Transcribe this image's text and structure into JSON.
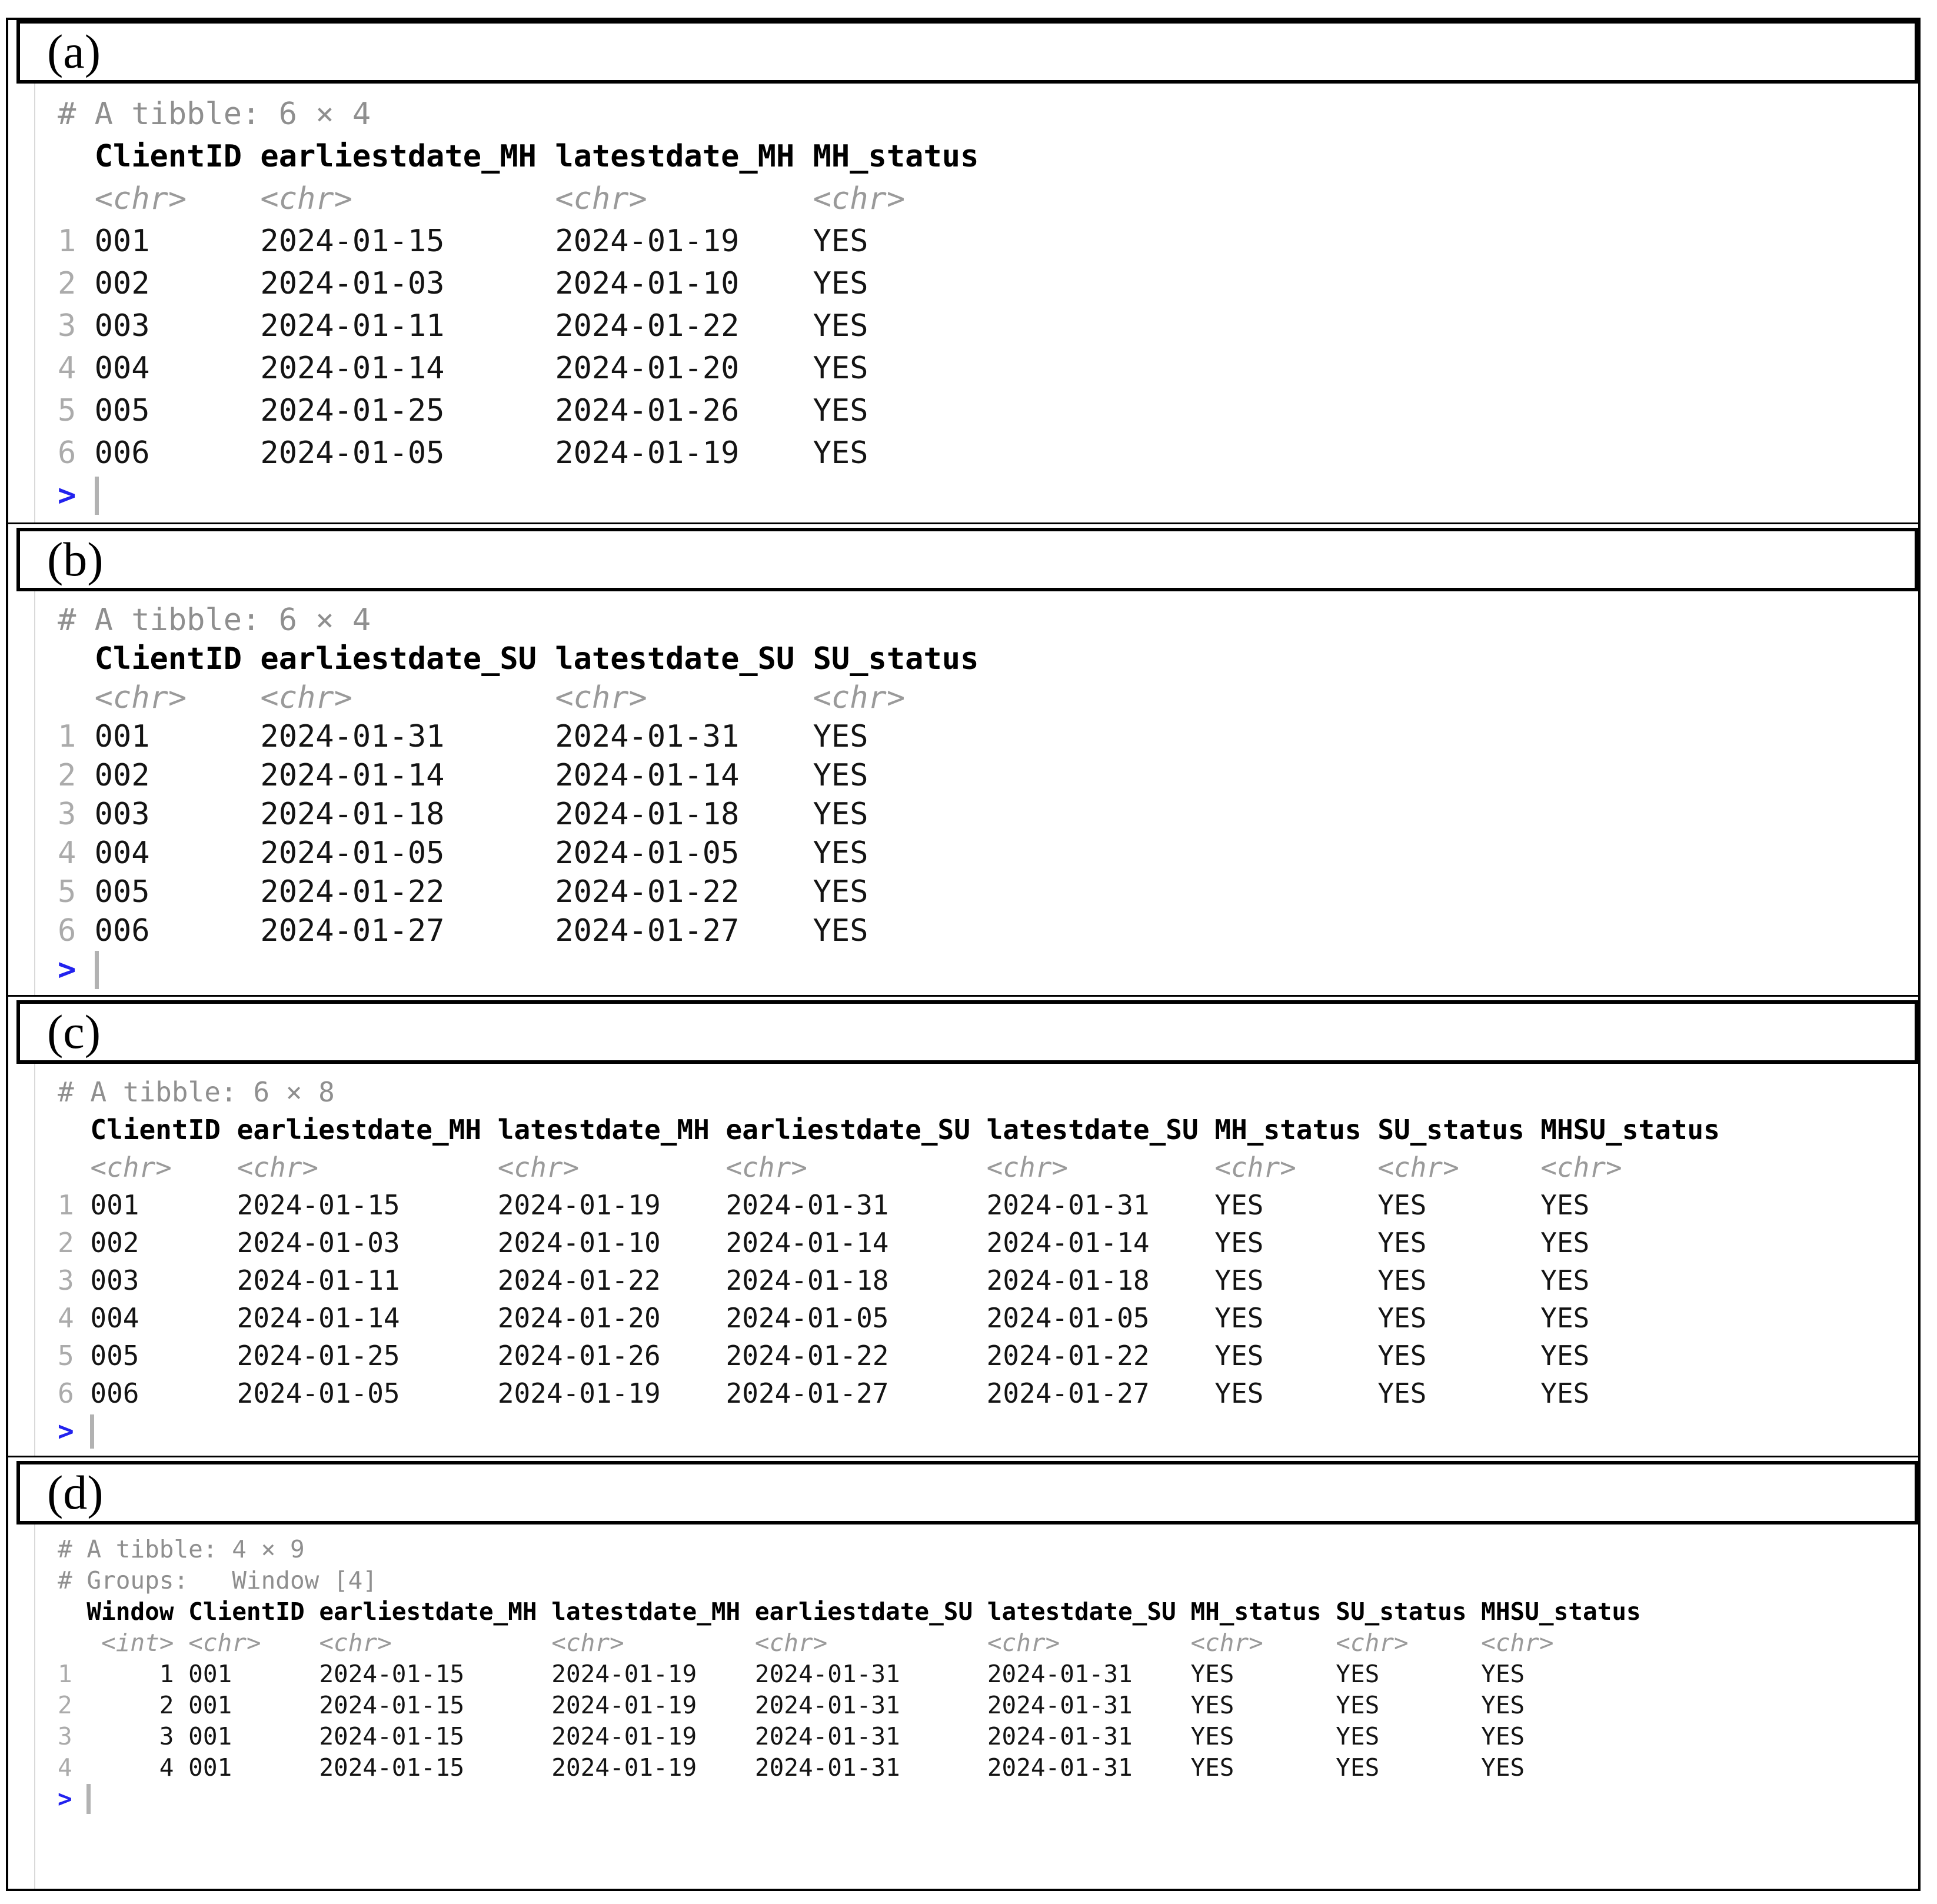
{
  "colors": {
    "prompt_blue": "#2222ee",
    "meta_gray": "#8f8f8f",
    "type_gray": "#9a9a9a",
    "row_number_gray": "#ababab",
    "cursor_gray": "#b2b2b2",
    "border_black": "#000000"
  },
  "panels": [
    {
      "label": "(a)",
      "console": {
        "meta": [
          "# A tibble: 6 × 4"
        ],
        "columns": [
          {
            "name": "ClientID",
            "type": "<chr>"
          },
          {
            "name": "earliestdate_MH",
            "type": "<chr>"
          },
          {
            "name": "latestdate_MH",
            "type": "<chr>"
          },
          {
            "name": "MH_status",
            "type": "<chr>"
          }
        ],
        "rows": [
          [
            "001",
            "2024-01-15",
            "2024-01-19",
            "YES"
          ],
          [
            "002",
            "2024-01-03",
            "2024-01-10",
            "YES"
          ],
          [
            "003",
            "2024-01-11",
            "2024-01-22",
            "YES"
          ],
          [
            "004",
            "2024-01-14",
            "2024-01-20",
            "YES"
          ],
          [
            "005",
            "2024-01-25",
            "2024-01-26",
            "YES"
          ],
          [
            "006",
            "2024-01-05",
            "2024-01-19",
            "YES"
          ]
        ],
        "prompt": ">"
      }
    },
    {
      "label": "(b)",
      "console": {
        "meta": [
          "# A tibble: 6 × 4"
        ],
        "columns": [
          {
            "name": "ClientID",
            "type": "<chr>"
          },
          {
            "name": "earliestdate_SU",
            "type": "<chr>"
          },
          {
            "name": "latestdate_SU",
            "type": "<chr>"
          },
          {
            "name": "SU_status",
            "type": "<chr>"
          }
        ],
        "rows": [
          [
            "001",
            "2024-01-31",
            "2024-01-31",
            "YES"
          ],
          [
            "002",
            "2024-01-14",
            "2024-01-14",
            "YES"
          ],
          [
            "003",
            "2024-01-18",
            "2024-01-18",
            "YES"
          ],
          [
            "004",
            "2024-01-05",
            "2024-01-05",
            "YES"
          ],
          [
            "005",
            "2024-01-22",
            "2024-01-22",
            "YES"
          ],
          [
            "006",
            "2024-01-27",
            "2024-01-27",
            "YES"
          ]
        ],
        "prompt": ">"
      }
    },
    {
      "label": "(c)",
      "console": {
        "meta": [
          "# A tibble: 6 × 8"
        ],
        "columns": [
          {
            "name": "ClientID",
            "type": "<chr>"
          },
          {
            "name": "earliestdate_MH",
            "type": "<chr>"
          },
          {
            "name": "latestdate_MH",
            "type": "<chr>"
          },
          {
            "name": "earliestdate_SU",
            "type": "<chr>"
          },
          {
            "name": "latestdate_SU",
            "type": "<chr>"
          },
          {
            "name": "MH_status",
            "type": "<chr>"
          },
          {
            "name": "SU_status",
            "type": "<chr>"
          },
          {
            "name": "MHSU_status",
            "type": "<chr>"
          }
        ],
        "rows": [
          [
            "001",
            "2024-01-15",
            "2024-01-19",
            "2024-01-31",
            "2024-01-31",
            "YES",
            "YES",
            "YES"
          ],
          [
            "002",
            "2024-01-03",
            "2024-01-10",
            "2024-01-14",
            "2024-01-14",
            "YES",
            "YES",
            "YES"
          ],
          [
            "003",
            "2024-01-11",
            "2024-01-22",
            "2024-01-18",
            "2024-01-18",
            "YES",
            "YES",
            "YES"
          ],
          [
            "004",
            "2024-01-14",
            "2024-01-20",
            "2024-01-05",
            "2024-01-05",
            "YES",
            "YES",
            "YES"
          ],
          [
            "005",
            "2024-01-25",
            "2024-01-26",
            "2024-01-22",
            "2024-01-22",
            "YES",
            "YES",
            "YES"
          ],
          [
            "006",
            "2024-01-05",
            "2024-01-19",
            "2024-01-27",
            "2024-01-27",
            "YES",
            "YES",
            "YES"
          ]
        ],
        "prompt": ">"
      }
    },
    {
      "label": "(d)",
      "console": {
        "meta": [
          "# A tibble: 4 × 9",
          "# Groups:   Window [4]"
        ],
        "columns": [
          {
            "name": "Window",
            "type": "<int>"
          },
          {
            "name": "ClientID",
            "type": "<chr>"
          },
          {
            "name": "earliestdate_MH",
            "type": "<chr>"
          },
          {
            "name": "latestdate_MH",
            "type": "<chr>"
          },
          {
            "name": "earliestdate_SU",
            "type": "<chr>"
          },
          {
            "name": "latestdate_SU",
            "type": "<chr>"
          },
          {
            "name": "MH_status",
            "type": "<chr>"
          },
          {
            "name": "SU_status",
            "type": "<chr>"
          },
          {
            "name": "MHSU_status",
            "type": "<chr>"
          }
        ],
        "rows": [
          [
            "1",
            "001",
            "2024-01-15",
            "2024-01-19",
            "2024-01-31",
            "2024-01-31",
            "YES",
            "YES",
            "YES"
          ],
          [
            "2",
            "001",
            "2024-01-15",
            "2024-01-19",
            "2024-01-31",
            "2024-01-31",
            "YES",
            "YES",
            "YES"
          ],
          [
            "3",
            "001",
            "2024-01-15",
            "2024-01-19",
            "2024-01-31",
            "2024-01-31",
            "YES",
            "YES",
            "YES"
          ],
          [
            "4",
            "001",
            "2024-01-15",
            "2024-01-19",
            "2024-01-31",
            "2024-01-31",
            "YES",
            "YES",
            "YES"
          ]
        ],
        "prompt": ">"
      }
    }
  ]
}
